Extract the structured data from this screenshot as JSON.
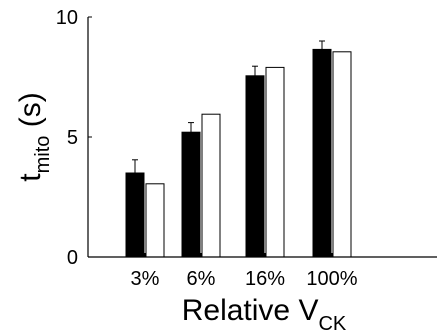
{
  "chart_data": {
    "type": "bar",
    "categories": [
      "3%",
      "6%",
      "16%",
      "100%"
    ],
    "series": [
      {
        "values": [
          3.5,
          5.2,
          7.55,
          8.65
        ],
        "errors": [
          0.55,
          0.4,
          0.4,
          0.35
        ],
        "color": "#000000"
      },
      {
        "values": [
          3.05,
          5.95,
          7.9,
          8.55
        ],
        "color": "#ffffff"
      }
    ],
    "ylim": [
      0,
      10
    ],
    "yticks": [
      0,
      5,
      10
    ],
    "ylabel_main": "t",
    "ylabel_sub": "mito",
    "ylabel_unit": " (s)",
    "xlabel_main": "Relative V",
    "xlabel_sub": "CK",
    "grid": false
  }
}
